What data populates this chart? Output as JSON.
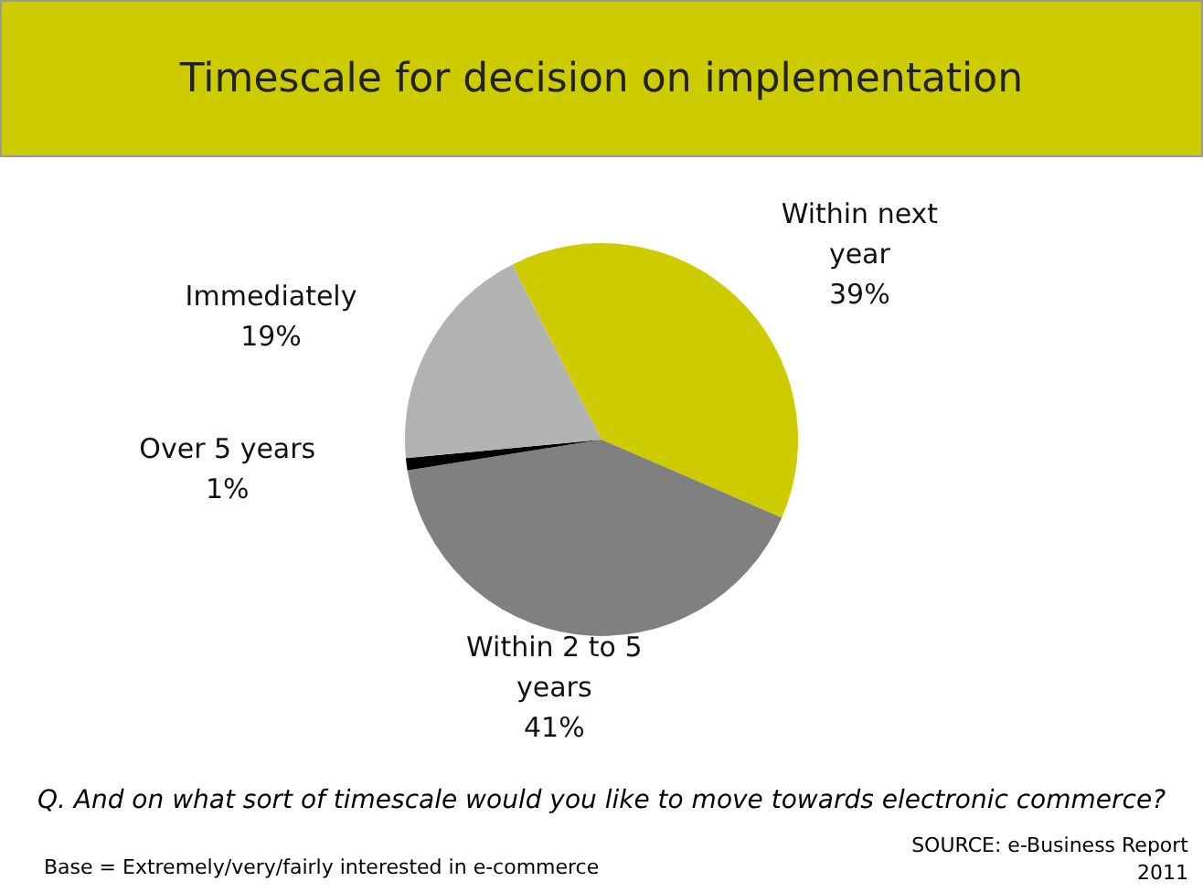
{
  "chart_data": {
    "type": "pie",
    "title": "Timescale for decision on implementation",
    "categories": [
      "Within next year",
      "Within 2 to 5 years",
      "Over 5 years",
      "Immediately"
    ],
    "values": [
      39,
      41,
      1,
      19
    ],
    "colors": [
      "#cccc00",
      "#808080",
      "#000000",
      "#b2b2b2"
    ],
    "value_labels": [
      "39%",
      "41%",
      "1%",
      "19%"
    ],
    "legend": false,
    "annotations": [
      "Q. And on what sort of timescale would you like to move towards electronic commerce?",
      "Base = Extremely/very/fairly interested in e-commerce",
      "SOURCE: e-Business Report",
      "2011"
    ]
  }
}
